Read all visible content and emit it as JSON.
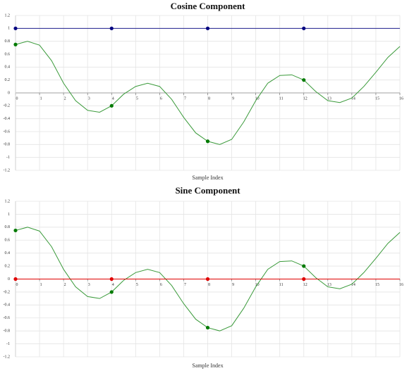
{
  "chart_data": [
    {
      "type": "line",
      "title": "Cosine Component",
      "xlabel": "Sample Index",
      "xlim": [
        0,
        16
      ],
      "xticks": [
        0,
        1,
        2,
        3,
        4,
        5,
        6,
        7,
        8,
        9,
        10,
        11,
        12,
        13,
        14,
        15,
        16
      ],
      "ylim": [
        -1.2,
        1.2
      ],
      "yticks": [
        -1.2,
        -1,
        -0.8,
        -0.6,
        -0.4,
        -0.2,
        0,
        0.2,
        0.4,
        0.6,
        0.8,
        1,
        1.2
      ],
      "grid": true,
      "series": [
        {
          "mode": "line",
          "color": "#3a9a3a",
          "x": [
            0,
            0.5,
            1,
            1.5,
            2,
            2.5,
            3,
            3.5,
            4,
            4.5,
            5,
            5.5,
            6,
            6.5,
            7,
            7.5,
            8,
            8.5,
            9,
            9.5,
            10,
            10.5,
            11,
            11.5,
            12,
            12.5,
            13,
            13.5,
            14,
            14.5,
            15,
            15.5,
            16
          ],
          "values": [
            0.75,
            0.8,
            0.74,
            0.5,
            0.15,
            -0.12,
            -0.27,
            -0.3,
            -0.2,
            -0.02,
            0.1,
            0.15,
            0.1,
            -0.1,
            -0.38,
            -0.62,
            -0.75,
            -0.8,
            -0.72,
            -0.45,
            -0.12,
            0.15,
            0.27,
            0.28,
            0.2,
            0.02,
            -0.12,
            -0.15,
            -0.08,
            0.1,
            0.32,
            0.55,
            0.72
          ]
        },
        {
          "mode": "line+markers",
          "color": "#000080",
          "x": [
            0,
            4,
            8,
            12
          ],
          "values": [
            1,
            1,
            1,
            1
          ],
          "line_extent": [
            0,
            16
          ]
        },
        {
          "mode": "markers",
          "color": "#007a00",
          "x": [
            0,
            4,
            8,
            12
          ],
          "values": [
            0.75,
            -0.2,
            -0.75,
            0.2
          ]
        }
      ]
    },
    {
      "type": "line",
      "title": "Sine Component",
      "xlabel": "Sample Index",
      "xlim": [
        0,
        16
      ],
      "xticks": [
        0,
        1,
        2,
        3,
        4,
        5,
        6,
        7,
        8,
        9,
        10,
        11,
        12,
        13,
        14,
        15,
        16
      ],
      "ylim": [
        -1.2,
        1.2
      ],
      "yticks": [
        -1.2,
        -1,
        -0.8,
        -0.6,
        -0.4,
        -0.2,
        0,
        0.2,
        0.4,
        0.6,
        0.8,
        1,
        1.2
      ],
      "grid": true,
      "series": [
        {
          "mode": "line",
          "color": "#3a9a3a",
          "x": [
            0,
            0.5,
            1,
            1.5,
            2,
            2.5,
            3,
            3.5,
            4,
            4.5,
            5,
            5.5,
            6,
            6.5,
            7,
            7.5,
            8,
            8.5,
            9,
            9.5,
            10,
            10.5,
            11,
            11.5,
            12,
            12.5,
            13,
            13.5,
            14,
            14.5,
            15,
            15.5,
            16
          ],
          "values": [
            0.75,
            0.8,
            0.74,
            0.5,
            0.15,
            -0.12,
            -0.27,
            -0.3,
            -0.2,
            -0.02,
            0.1,
            0.15,
            0.1,
            -0.1,
            -0.38,
            -0.62,
            -0.75,
            -0.8,
            -0.72,
            -0.45,
            -0.12,
            0.15,
            0.27,
            0.28,
            0.2,
            0.02,
            -0.12,
            -0.15,
            -0.08,
            0.1,
            0.32,
            0.55,
            0.72
          ]
        },
        {
          "mode": "line+markers",
          "color": "#e00000",
          "x": [
            0,
            4,
            8,
            12
          ],
          "values": [
            0,
            0,
            0,
            0
          ],
          "line_extent": [
            0,
            16
          ]
        },
        {
          "mode": "markers",
          "color": "#007a00",
          "x": [
            0,
            4,
            8,
            12
          ],
          "values": [
            0.75,
            -0.2,
            -0.75,
            0.2
          ]
        }
      ]
    }
  ]
}
